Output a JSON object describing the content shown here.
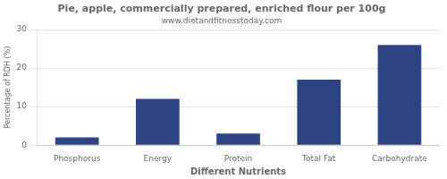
{
  "chart_data": {
    "type": "bar",
    "title": "Pie, apple, commercially prepared, enriched flour per 100g",
    "subtitle": "www.dietandfitnesstoday.com",
    "xlabel": "Different Nutrients",
    "ylabel": "Percentage of RDH (%)",
    "categories": [
      "Phosphorus",
      "Energy",
      "Protein",
      "Total Fat",
      "Carbohydrate"
    ],
    "values": [
      2,
      12,
      3,
      17,
      26
    ],
    "color": "#2e4482",
    "ylim": [
      0,
      30
    ],
    "yticks": [
      0,
      10,
      20,
      30
    ],
    "grid": true
  }
}
